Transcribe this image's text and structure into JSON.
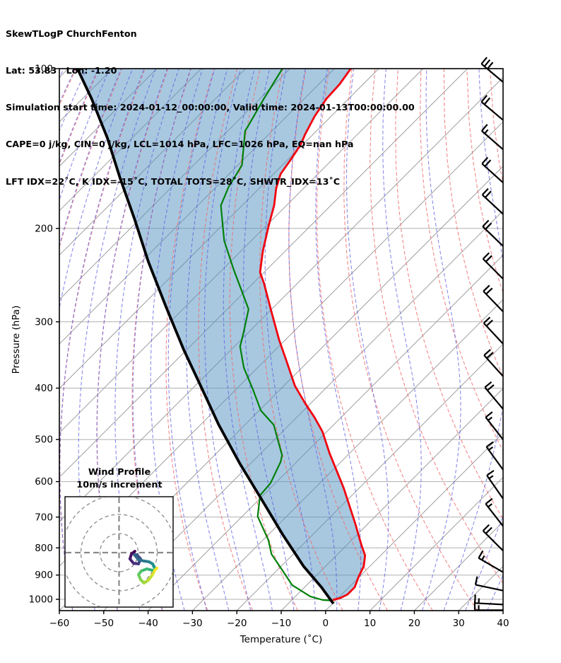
{
  "header": {
    "title": "SkewTLogP ChurchFenton",
    "position": "Lat: 53.83   Lon: -1.20",
    "times": "Simulation start time: 2024-01-12_00:00:00, Valid time: 2024-01-13T00:00:00.00",
    "stability": "CAPE=0 j/kg, CIN=0 j/kg, LCL=1014 hPa, LFC=1026 hPa, EQ=nan hPa",
    "indices": "LFT IDX=22˚C, K IDX=-15˚C, TOTAL TOTS=28˚C, SHWTR_IDX=13˚C"
  },
  "axes": {
    "x_label": "Temperature (˚C)",
    "y_label": "Pressure (hPa)",
    "x_ticks": [
      -60,
      -50,
      -40,
      -30,
      -20,
      -10,
      0,
      10,
      20,
      30,
      40
    ],
    "y_ticks": [
      100,
      200,
      300,
      400,
      500,
      600,
      700,
      800,
      900,
      1000
    ]
  },
  "inset": {
    "title1": "Wind Profile",
    "title2": "10m/s increment",
    "rings_ms": [
      10,
      20,
      30
    ]
  },
  "colors": {
    "temperature": "#f00410",
    "dewpoint": "#00800a",
    "parcel": "#000000",
    "dry_adiabat": "#ef6b6b",
    "moist_adiabat": "#5a5ae0",
    "isotherm": "#9e9e9e",
    "pressure_grid": "#b0b0b0",
    "fill": "rgba(81,145,193,0.5)",
    "barb": "#000000",
    "inset_grid": "#8a8a8a",
    "viridis": [
      "#440154",
      "#46327e",
      "#365c8d",
      "#277f8e",
      "#1fa187",
      "#4ac16d",
      "#a0da39",
      "#fde725"
    ]
  },
  "chart_data": {
    "type": "line",
    "variant": "skew-t log-p sounding",
    "title": "SkewTLogP ChurchFenton",
    "xlabel": "Temperature (˚C)",
    "ylabel": "Pressure (hPa)",
    "xlim": [
      -60,
      40
    ],
    "ylim_hpa": [
      1050,
      100
    ],
    "skew_deg": 45,
    "grid": {
      "isotherm_min": -180,
      "isotherm_max": 40,
      "isotherm_step": 10,
      "dry_adiabat_theta_min": -100,
      "dry_adiabat_theta_max": 100,
      "dry_adiabat_step": 10,
      "moist_adiabat_thetaw_min": -100,
      "moist_adiabat_thetaw_max": 40,
      "moist_adiabat_step": 5
    },
    "series": [
      {
        "name": "temperature",
        "points": [
          [
            100,
            -116.3
          ],
          [
            107,
            -115.3
          ],
          [
            114,
            -115.0
          ],
          [
            123,
            -113.7
          ],
          [
            133,
            -111.8
          ],
          [
            139,
            -110.5
          ],
          [
            148,
            -109.4
          ],
          [
            158,
            -108.4
          ],
          [
            168,
            -106.2
          ],
          [
            181,
            -102.8
          ],
          [
            198,
            -99.4
          ],
          [
            221,
            -95.0
          ],
          [
            242,
            -90.9
          ],
          [
            254,
            -87.5
          ],
          [
            287,
            -79.5
          ],
          [
            324,
            -71.5
          ],
          [
            355,
            -65.1
          ],
          [
            396,
            -57.5
          ],
          [
            427,
            -51.3
          ],
          [
            454,
            -46.0
          ],
          [
            483,
            -41.0
          ],
          [
            530,
            -34.6
          ],
          [
            618,
            -23.4
          ],
          [
            720,
            -12.9
          ],
          [
            790,
            -6.7
          ],
          [
            827,
            -3.5
          ],
          [
            866,
            -1.4
          ],
          [
            906,
            -0.2
          ],
          [
            949,
            1.3
          ],
          [
            979,
            1.3
          ],
          [
            994,
            0.5
          ],
          [
            1003,
            -0.8
          ]
        ]
      },
      {
        "name": "dewpoint",
        "points": [
          [
            100,
            -131.7
          ],
          [
            114,
            -129.1
          ],
          [
            129,
            -126.4
          ],
          [
            131,
            -126.1
          ],
          [
            152,
            -119.1
          ],
          [
            167,
            -117.2
          ],
          [
            181,
            -114.8
          ],
          [
            211,
            -106.1
          ],
          [
            239,
            -97.5
          ],
          [
            264,
            -90.4
          ],
          [
            284,
            -85.2
          ],
          [
            314,
            -81.1
          ],
          [
            334,
            -78.7
          ],
          [
            366,
            -73.1
          ],
          [
            402,
            -66.2
          ],
          [
            441,
            -59.6
          ],
          [
            469,
            -53.5
          ],
          [
            535,
            -44.8
          ],
          [
            551,
            -43.6
          ],
          [
            604,
            -41.1
          ],
          [
            637,
            -40.7
          ],
          [
            698,
            -36.5
          ],
          [
            773,
            -28.8
          ],
          [
            822,
            -24.9
          ],
          [
            884,
            -18.6
          ],
          [
            940,
            -13.3
          ],
          [
            988,
            -6.6
          ],
          [
            1003,
            -3.0
          ],
          [
            1005,
            -1.1
          ]
        ]
      },
      {
        "name": "parcel",
        "points": [
          [
            100,
            -177.9
          ],
          [
            114,
            -167.9
          ],
          [
            135,
            -155.6
          ],
          [
            160,
            -144.0
          ],
          [
            192,
            -131.2
          ],
          [
            231,
            -118.5
          ],
          [
            282,
            -104.1
          ],
          [
            339,
            -90.6
          ],
          [
            402,
            -77.6
          ],
          [
            469,
            -65.9
          ],
          [
            555,
            -52.4
          ],
          [
            647,
            -39.6
          ],
          [
            754,
            -26.9
          ],
          [
            866,
            -15.0
          ],
          [
            949,
            -6.2
          ],
          [
            1019,
            0.2
          ]
        ]
      }
    ],
    "shading": {
      "between": [
        "parcel",
        "temperature"
      ]
    },
    "wind_barbs": [
      {
        "p": 106,
        "angle": 40,
        "full": 3,
        "half": 0
      },
      {
        "p": 125,
        "angle": 40,
        "full": 2,
        "half": 0
      },
      {
        "p": 142,
        "angle": 41,
        "full": 1,
        "half": 1
      },
      {
        "p": 164,
        "angle": 42,
        "full": 2,
        "half": 0
      },
      {
        "p": 188,
        "angle": 43,
        "full": 2,
        "half": 0
      },
      {
        "p": 216,
        "angle": 44,
        "full": 2,
        "half": 0
      },
      {
        "p": 249,
        "angle": 45,
        "full": 2,
        "half": 0
      },
      {
        "p": 287,
        "angle": 46,
        "full": 2,
        "half": 0
      },
      {
        "p": 330,
        "angle": 47,
        "full": 2,
        "half": 0
      },
      {
        "p": 380,
        "angle": 48,
        "full": 2,
        "half": 0
      },
      {
        "p": 438,
        "angle": 50,
        "full": 2,
        "half": 0
      },
      {
        "p": 500,
        "angle": 52,
        "full": 1,
        "half": 1
      },
      {
        "p": 570,
        "angle": 54,
        "full": 1,
        "half": 1
      },
      {
        "p": 646,
        "angle": 55,
        "full": 1,
        "half": 1
      },
      {
        "p": 728,
        "angle": 52,
        "full": 1,
        "half": 1
      },
      {
        "p": 810,
        "angle": 45,
        "full": 2,
        "half": 0
      },
      {
        "p": 889,
        "angle": 30,
        "full": 1,
        "half": 1
      },
      {
        "p": 963,
        "angle": 12,
        "full": 1,
        "half": 0
      },
      {
        "p": 1023,
        "angle": 3,
        "full": 1,
        "half": 1
      },
      {
        "p": 1048,
        "angle": 0,
        "full": 1,
        "half": 1
      }
    ],
    "hodograph_trace_ms": [
      [
        8.3,
        0.7
      ],
      [
        6.5,
        -0.7
      ],
      [
        5.7,
        -3.3
      ],
      [
        7.6,
        -5.6
      ],
      [
        10.2,
        -5.9
      ],
      [
        11.3,
        -3.3
      ],
      [
        9.4,
        -1.1
      ],
      [
        8.0,
        -1.1
      ],
      [
        10.2,
        -3.7
      ],
      [
        13.1,
        -4.4
      ],
      [
        15.7,
        -4.8
      ],
      [
        17.6,
        -5.9
      ],
      [
        18.3,
        -7.4
      ],
      [
        19.4,
        -8.5
      ],
      [
        17.6,
        -9.3
      ],
      [
        14.6,
        -8.5
      ],
      [
        11.7,
        -9.6
      ],
      [
        10.2,
        -11.5
      ],
      [
        11.3,
        -14.1
      ],
      [
        13.1,
        -15.9
      ],
      [
        15.4,
        -14.4
      ],
      [
        17.6,
        -11.5
      ],
      [
        18.7,
        -9.3
      ],
      [
        19.8,
        -8.1
      ]
    ]
  }
}
